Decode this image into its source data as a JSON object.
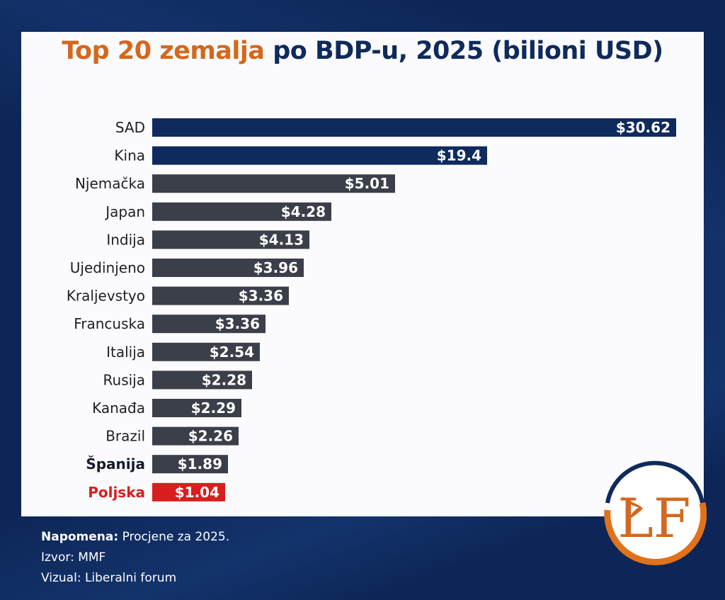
{
  "title": {
    "accent_part": "Top 20 zemalja",
    "main_part": " po BDP-u, 2025 (bilioni USD)"
  },
  "colors": {
    "background": "#0d2657",
    "title_accent": "#d4681e",
    "title_main": "#0f2a5c",
    "bar_top": "#0f2a5c",
    "bar_default": "#3b3f4a",
    "bar_highlight": "#d81e1e"
  },
  "chart_data": {
    "type": "bar",
    "orientation": "horizontal",
    "title": "Top 20 zemalja po BDP-u, 2025 (bilioni USD)",
    "xlabel": "",
    "ylabel": "",
    "grid": false,
    "legend": "none",
    "value_prefix": "$",
    "categories": [
      "SAD",
      "Kina",
      "Njemačka",
      "Japan",
      "Indija",
      "Ujedinjeno",
      "Kraljevstyo",
      "Francuska",
      "Italija",
      "Rusija",
      "Kanađa",
      "Brazil",
      "Španija",
      "Poljska"
    ],
    "values": [
      30.62,
      19.4,
      5.01,
      4.28,
      4.13,
      3.96,
      3.36,
      3.36,
      2.54,
      2.28,
      2.29,
      2.26,
      1.89,
      1.04
    ],
    "value_labels": [
      "$30.62",
      "$19.4",
      "$5.01",
      "$4.28",
      "$4.13",
      "$3.96",
      "$3.36",
      "$3.36",
      "$2.54",
      "$2.28",
      "$2.29",
      "$2.26",
      "$1.89",
      "$1.04"
    ],
    "styles": [
      "top",
      "top",
      "default",
      "default",
      "default",
      "default",
      "default",
      "default",
      "default",
      "default",
      "default",
      "default",
      "bold",
      "highlight"
    ]
  },
  "footer": {
    "note_label": "Napomena:",
    "note_text": " Procjene za 2025.",
    "source": "Izvor: MMF",
    "visual": "Vizual: Liberalni forum"
  },
  "logo": {
    "text": "LF",
    "icon": "bird-icon"
  }
}
